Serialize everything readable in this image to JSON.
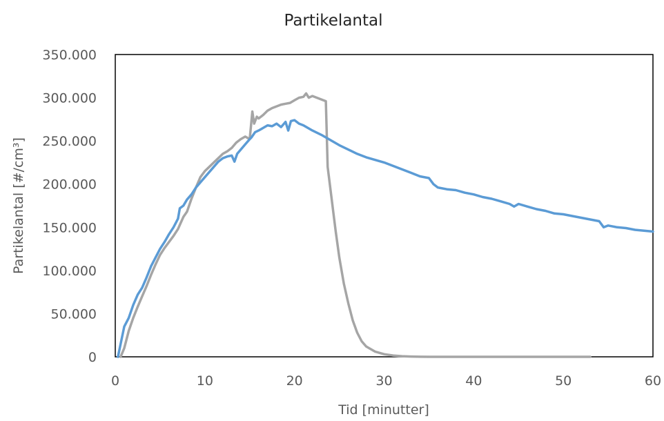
{
  "chart_data": {
    "type": "line",
    "title": "Partikelantal",
    "xlabel": "Tid [minutter]",
    "ylabel": "Partikelantal [#/cm³]",
    "xlim": [
      0,
      60
    ],
    "ylim": [
      0,
      350000
    ],
    "x_ticks": [
      "0",
      "10",
      "20",
      "30",
      "40",
      "50",
      "60"
    ],
    "y_ticks": [
      "0",
      "50.000",
      "100.000",
      "150.000",
      "200.000",
      "250.000",
      "300.000",
      "350.000"
    ],
    "grid": false,
    "legend": "none",
    "series": [
      {
        "color": "#5b9bd5",
        "x": [
          0.3,
          0.6,
          1.0,
          1.5,
          2.0,
          2.5,
          3.0,
          3.5,
          4.0,
          4.5,
          5.0,
          5.5,
          6.0,
          6.5,
          7.0,
          7.2,
          7.6,
          8.0,
          8.5,
          9.0,
          9.5,
          10.0,
          10.5,
          11.0,
          11.5,
          12.0,
          12.5,
          13.0,
          13.3,
          13.6,
          14.0,
          14.5,
          15.0,
          15.2,
          15.6,
          16.0,
          16.5,
          17.0,
          17.5,
          18.0,
          18.5,
          19.0,
          19.3,
          19.6,
          20.0,
          20.5,
          21.0,
          21.5,
          22.0,
          23.0,
          24.0,
          25.0,
          26.0,
          27.0,
          28.0,
          29.0,
          30.0,
          31.0,
          32.0,
          33.0,
          34.0,
          35.0,
          35.5,
          36.0,
          37.0,
          38.0,
          39.0,
          40.0,
          41.0,
          42.0,
          43.0,
          44.0,
          44.5,
          45.0,
          46.0,
          47.0,
          48.0,
          49.0,
          50.0,
          51.0,
          52.0,
          53.0,
          54.0,
          54.5,
          55.0,
          56.0,
          57.0,
          58.0,
          59.0,
          60.0
        ],
        "y": [
          0,
          15000,
          35000,
          45000,
          60000,
          72000,
          80000,
          92000,
          105000,
          115000,
          125000,
          133000,
          142000,
          150000,
          160000,
          172000,
          175000,
          182000,
          188000,
          196000,
          202000,
          208000,
          214000,
          220000,
          226000,
          230000,
          232000,
          233000,
          226000,
          235000,
          240000,
          246000,
          252000,
          254000,
          260000,
          262000,
          265000,
          268000,
          267000,
          270000,
          266000,
          272000,
          262000,
          273000,
          274000,
          270000,
          268000,
          265000,
          262000,
          257000,
          251000,
          245000,
          240000,
          235000,
          231000,
          228000,
          225000,
          221000,
          217000,
          213000,
          209000,
          207000,
          200000,
          196000,
          194000,
          193000,
          190000,
          188000,
          185000,
          183000,
          180000,
          177000,
          174000,
          177000,
          174000,
          171000,
          169000,
          166000,
          165000,
          163000,
          161000,
          159000,
          157000,
          150000,
          152000,
          150000,
          149000,
          147000,
          146000,
          145000
        ]
      },
      {
        "color": "#a5a5a5",
        "x": [
          0.6,
          1.0,
          1.5,
          2.0,
          2.5,
          3.0,
          3.5,
          4.0,
          4.5,
          5.0,
          5.5,
          6.0,
          6.5,
          7.0,
          7.3,
          7.6,
          8.0,
          8.5,
          9.0,
          9.5,
          10.0,
          10.5,
          11.0,
          11.5,
          12.0,
          12.5,
          13.0,
          13.5,
          14.0,
          14.5,
          15.0,
          15.3,
          15.5,
          15.8,
          16.0,
          16.5,
          17.0,
          17.5,
          18.0,
          18.5,
          19.0,
          19.5,
          20.0,
          20.5,
          21.0,
          21.3,
          21.6,
          22.0,
          22.5,
          23.0,
          23.5,
          23.7,
          24.0,
          24.3,
          24.6,
          25.0,
          25.5,
          26.0,
          26.5,
          27.0,
          27.5,
          28.0,
          29.0,
          30.0,
          31.0,
          32.0,
          33.0,
          34.0,
          35.0,
          37.0,
          40.0,
          45.0,
          50.0,
          53.0
        ],
        "y": [
          0,
          10000,
          30000,
          45000,
          58000,
          70000,
          82000,
          95000,
          107000,
          118000,
          126000,
          133000,
          140000,
          148000,
          155000,
          162000,
          168000,
          183000,
          196000,
          208000,
          215000,
          220000,
          225000,
          230000,
          235000,
          238000,
          242000,
          248000,
          252000,
          255000,
          252000,
          284000,
          270000,
          278000,
          276000,
          280000,
          285000,
          288000,
          290000,
          292000,
          293000,
          294000,
          297000,
          300000,
          301000,
          305000,
          300000,
          302000,
          300000,
          298000,
          296000,
          220000,
          195000,
          170000,
          145000,
          115000,
          85000,
          62000,
          42000,
          28000,
          18000,
          12000,
          6000,
          3000,
          1500,
          700,
          300,
          100,
          0,
          0,
          0,
          0,
          0,
          0
        ]
      }
    ]
  }
}
